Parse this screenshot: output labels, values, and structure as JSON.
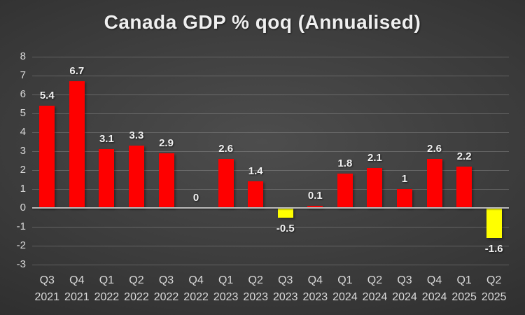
{
  "title": "Canada GDP % qoq (Annualised)",
  "colors": {
    "positive_bar": "#fe0000",
    "negative_bar": "#ffff00",
    "background_center": "#4d4d4d",
    "background_mid": "#383838",
    "background_edge": "#232323",
    "gridline": "rgba(216,216,216,0.25)",
    "zero_line": "#b8b8b8",
    "tick_label": "#d9d9d9",
    "data_label": "#f2f2f2",
    "title_color": "#efefef"
  },
  "chart_data": {
    "type": "bar",
    "title": "Canada GDP % qoq (Annualised)",
    "xlabel": "",
    "ylabel": "",
    "categories": [
      {
        "quarter": "Q3",
        "year": "2021"
      },
      {
        "quarter": "Q4",
        "year": "2021"
      },
      {
        "quarter": "Q1",
        "year": "2022"
      },
      {
        "quarter": "Q2",
        "year": "2022"
      },
      {
        "quarter": "Q3",
        "year": "2022"
      },
      {
        "quarter": "Q4",
        "year": "2022"
      },
      {
        "quarter": "Q1",
        "year": "2023"
      },
      {
        "quarter": "Q2",
        "year": "2023"
      },
      {
        "quarter": "Q3",
        "year": "2023"
      },
      {
        "quarter": "Q4",
        "year": "2023"
      },
      {
        "quarter": "Q1",
        "year": "2024"
      },
      {
        "quarter": "Q2",
        "year": "2024"
      },
      {
        "quarter": "Q3",
        "year": "2024"
      },
      {
        "quarter": "Q4",
        "year": "2024"
      },
      {
        "quarter": "Q1",
        "year": "2025"
      },
      {
        "quarter": "Q2",
        "year": "2025"
      }
    ],
    "values": [
      5.4,
      6.7,
      3.1,
      3.3,
      2.9,
      0,
      2.6,
      1.4,
      -0.5,
      0.1,
      1.8,
      2.1,
      1,
      2.6,
      2.2,
      -1.6
    ],
    "labels": [
      "5.4",
      "6.7",
      "3.1",
      "3.3",
      "2.9",
      "0",
      "2.6",
      "1.4",
      "-0.5",
      "0.1",
      "1.8",
      "2.1",
      "1",
      "2.6",
      "2.2",
      "-1.6"
    ],
    "ylim": [
      -3,
      8
    ],
    "ytick_step": 1,
    "yticks": [
      8,
      7,
      6,
      5,
      4,
      3,
      2,
      1,
      0,
      -1,
      -2,
      -3
    ],
    "grid": true,
    "legend": false,
    "negative_color_rule": "negative values shown in yellow, positive in red"
  }
}
